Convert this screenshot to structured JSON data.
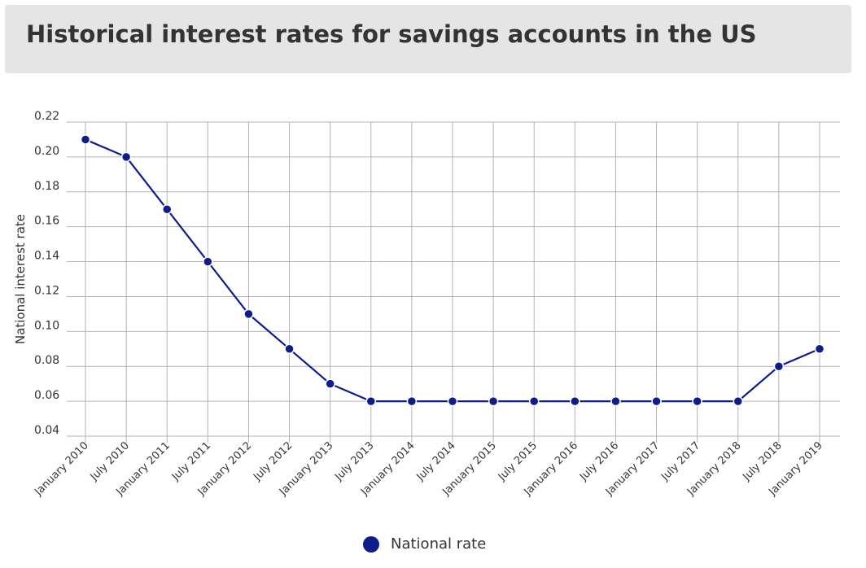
{
  "title": "Historical interest rates for savings accounts in the US",
  "colors": {
    "series": "#0d1e8c",
    "grid": "#b3b3b3",
    "title_bg": "#e5e5e5",
    "text": "#333333"
  },
  "chart_data": {
    "type": "line",
    "title": "Historical interest rates for savings accounts in the US",
    "xlabel": "",
    "ylabel": "National interest rate",
    "ylim": [
      0.04,
      0.22
    ],
    "yticks": [
      "0.22",
      "0.20",
      "0.18",
      "0.16",
      "0.14",
      "0.12",
      "0.10",
      "0.08",
      "0.06",
      "0.04"
    ],
    "grid": true,
    "legend_position": "bottom-center",
    "categories": [
      "January 2010",
      "July 2010",
      "January 2011",
      "July 2011",
      "January 2012",
      "July 2012",
      "January 2013",
      "July 2013",
      "January 2014",
      "July 2014",
      "January 2015",
      "July 2015",
      "January 2016",
      "July 2016",
      "January 2017",
      "July 2017",
      "January 2018",
      "July 2018",
      "January 2019"
    ],
    "series": [
      {
        "name": "National rate",
        "values": [
          0.21,
          0.2,
          0.17,
          0.14,
          0.11,
          0.09,
          0.07,
          0.06,
          0.06,
          0.06,
          0.06,
          0.06,
          0.06,
          0.06,
          0.06,
          0.06,
          0.06,
          0.08,
          0.09
        ]
      }
    ]
  }
}
